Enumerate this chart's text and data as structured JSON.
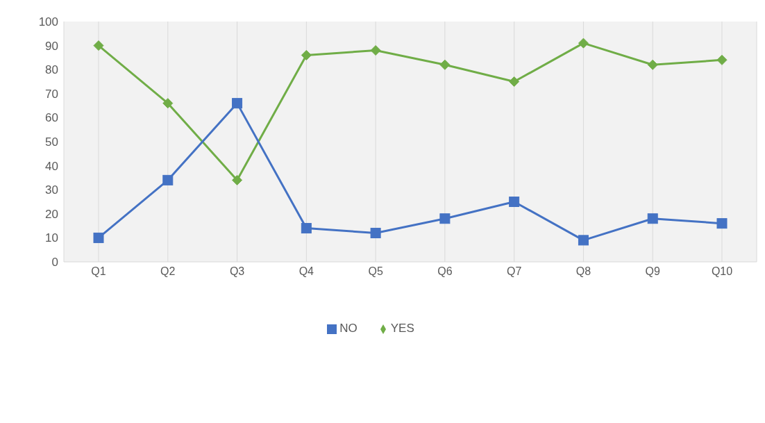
{
  "chart_data": {
    "type": "line",
    "categories": [
      "Q1",
      "Q2",
      "Q3",
      "Q4",
      "Q5",
      "Q6",
      "Q7",
      "Q8",
      "Q9",
      "Q10"
    ],
    "series": [
      {
        "name": "YES",
        "color": "#70ad47",
        "marker": "diamond",
        "values": [
          90,
          66,
          34,
          86,
          88,
          82,
          75,
          91,
          82,
          84
        ]
      },
      {
        "name": "NO",
        "color": "#4472c4",
        "marker": "square",
        "values": [
          10,
          34,
          66,
          14,
          12,
          18,
          25,
          9,
          18,
          16
        ]
      }
    ],
    "ylim": [
      0,
      100
    ],
    "yticks": [
      0,
      10,
      20,
      30,
      40,
      50,
      60,
      70,
      80,
      90,
      100
    ],
    "grid": "x",
    "legend": "bottom"
  }
}
